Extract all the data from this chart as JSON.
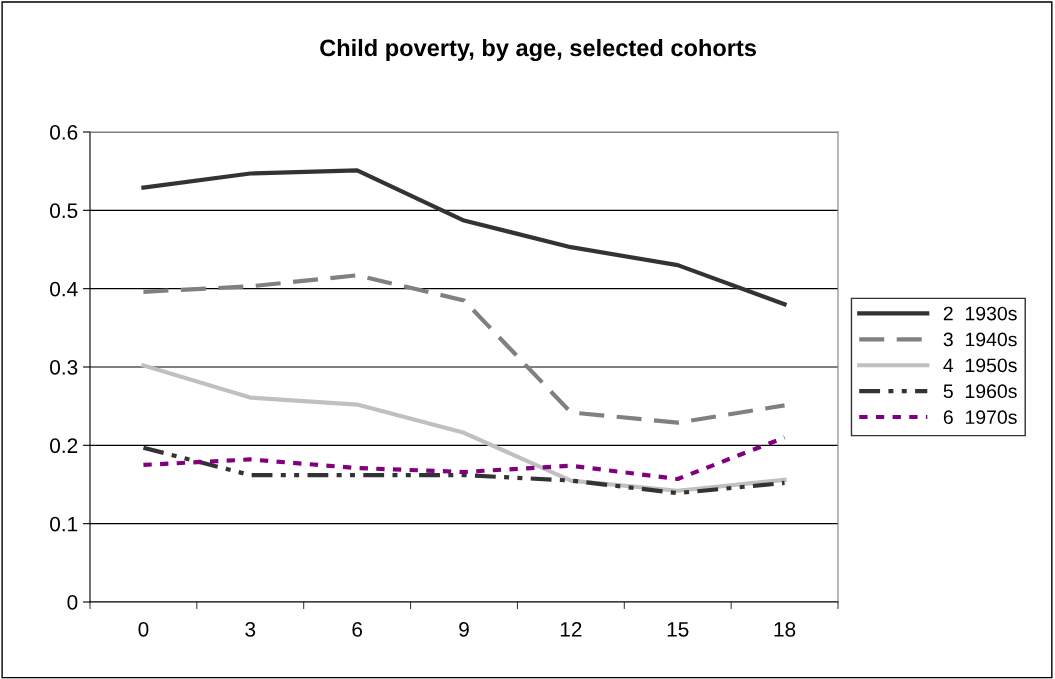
{
  "chart_data": {
    "type": "line",
    "title": "Child poverty, by age, selected cohorts",
    "categories": [
      "0",
      "3",
      "6",
      "9",
      "12",
      "15",
      "18"
    ],
    "series": [
      {
        "name": "2  1930s",
        "color": "#333333",
        "line_style": "solid",
        "values": [
          0.529,
          0.547,
          0.551,
          0.487,
          0.453,
          0.43,
          0.38
        ]
      },
      {
        "name": "3  1940s",
        "color": "#808080",
        "line_style": "dashed",
        "values": [
          0.396,
          0.403,
          0.417,
          0.385,
          0.242,
          0.229,
          0.251
        ]
      },
      {
        "name": "4  1950s",
        "color": "#c0c0c0",
        "line_style": "solid",
        "values": [
          0.302,
          0.261,
          0.252,
          0.216,
          0.155,
          0.142,
          0.156
        ]
      },
      {
        "name": "5  1960s",
        "color": "#333333",
        "line_style": "dashdot",
        "values": [
          0.197,
          0.162,
          0.162,
          0.162,
          0.155,
          0.139,
          0.152
        ]
      },
      {
        "name": "6  1970s",
        "color": "#800080",
        "line_style": "dotted",
        "values": [
          0.175,
          0.182,
          0.171,
          0.166,
          0.174,
          0.157,
          0.21
        ]
      }
    ],
    "ylim": [
      0,
      0.6
    ],
    "yticks": [
      0,
      0.1,
      0.2,
      0.3,
      0.4,
      0.5,
      0.6
    ],
    "grid": "y",
    "legend": "right",
    "marker": "none"
  }
}
